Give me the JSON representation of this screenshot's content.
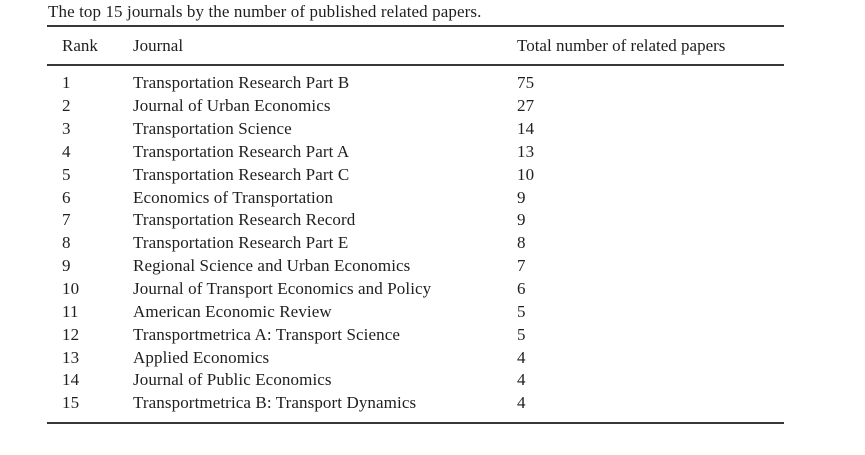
{
  "colors": {
    "background": "#ffffff",
    "text": "#1f1f1f",
    "rule": "#383838"
  },
  "table": {
    "caption": "The top 15 journals by the number of published related papers.",
    "columns": [
      "Rank",
      "Journal",
      "Total number of related papers"
    ],
    "rows": [
      {
        "rank": "1",
        "journal": "Transportation Research Part B",
        "papers": "75"
      },
      {
        "rank": "2",
        "journal": "Journal of Urban Economics",
        "papers": "27"
      },
      {
        "rank": "3",
        "journal": "Transportation Science",
        "papers": "14"
      },
      {
        "rank": "4",
        "journal": "Transportation Research Part A",
        "papers": "13"
      },
      {
        "rank": "5",
        "journal": "Transportation Research Part C",
        "papers": "10"
      },
      {
        "rank": "6",
        "journal": "Economics of Transportation",
        "papers": "9"
      },
      {
        "rank": "7",
        "journal": "Transportation Research Record",
        "papers": "9"
      },
      {
        "rank": "8",
        "journal": "Transportation Research Part E",
        "papers": "8"
      },
      {
        "rank": "9",
        "journal": "Regional Science and Urban Economics",
        "papers": "7"
      },
      {
        "rank": "10",
        "journal": "Journal of Transport Economics and Policy",
        "papers": "6"
      },
      {
        "rank": "11",
        "journal": "American Economic Review",
        "papers": "5"
      },
      {
        "rank": "12",
        "journal": "Transportmetrica A: Transport Science",
        "papers": "5"
      },
      {
        "rank": "13",
        "journal": "Applied Economics",
        "papers": "4"
      },
      {
        "rank": "14",
        "journal": "Journal of Public Economics",
        "papers": "4"
      },
      {
        "rank": "15",
        "journal": "Transportmetrica B: Transport Dynamics",
        "papers": "4"
      }
    ]
  },
  "chart_data": {
    "type": "table",
    "title": "The top 15 journals by the number of published related papers.",
    "categories": [
      "Transportation Research Part B",
      "Journal of Urban Economics",
      "Transportation Science",
      "Transportation Research Part A",
      "Transportation Research Part C",
      "Economics of Transportation",
      "Transportation Research Record",
      "Transportation Research Part E",
      "Regional Science and Urban Economics",
      "Journal of Transport Economics and Policy",
      "American Economic Review",
      "Transportmetrica A: Transport Science",
      "Applied Economics",
      "Journal of Public Economics",
      "Transportmetrica B: Transport Dynamics"
    ],
    "values": [
      75,
      27,
      14,
      13,
      10,
      9,
      9,
      8,
      7,
      6,
      5,
      5,
      4,
      4,
      4
    ]
  }
}
